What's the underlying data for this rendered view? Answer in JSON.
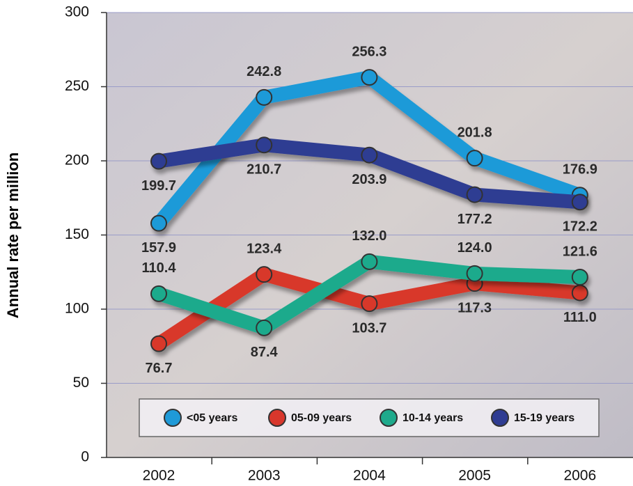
{
  "chart_data": {
    "type": "line",
    "y_label": "Annual rate per million",
    "categories": [
      "2002",
      "2003",
      "2004",
      "2005",
      "2006"
    ],
    "series": [
      {
        "name": "<05 years",
        "color": "#1f9ad8",
        "values": [
          157.9,
          242.8,
          256.3,
          201.8,
          176.9
        ],
        "value_labels": [
          "157.9",
          "242.8",
          "256.3",
          "201.8",
          "176.9"
        ]
      },
      {
        "name": "05-09 years",
        "color": "#d8372c",
        "values": [
          76.7,
          123.4,
          103.7,
          117.3,
          111.0
        ],
        "value_labels": [
          "76.7",
          "123.4",
          "103.7",
          "117.3",
          "111.0"
        ]
      },
      {
        "name": "10-14 years",
        "color": "#1eaa8c",
        "values": [
          110.4,
          87.4,
          132.0,
          124.0,
          121.6
        ],
        "value_labels": [
          "110.4",
          "87.4",
          "132.0",
          "124.0",
          "121.6"
        ]
      },
      {
        "name": "15-19 years",
        "color": "#2f3c92",
        "values": [
          199.7,
          210.7,
          203.9,
          177.2,
          172.2
        ],
        "value_labels": [
          "199.7",
          "210.7",
          "203.9",
          "177.2",
          "172.2"
        ]
      }
    ],
    "ylim": [
      0,
      300
    ],
    "yticks": [
      0,
      50,
      100,
      150,
      200,
      250,
      300
    ],
    "grid": true,
    "legend": "bottom"
  }
}
